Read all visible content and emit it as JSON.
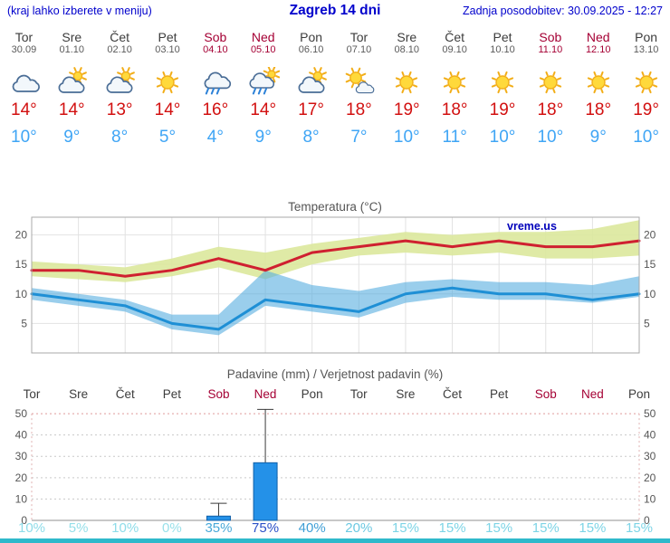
{
  "header": {
    "left_note": "(kraj lahko izberete v meniju)",
    "title": "Zagreb 14 dni",
    "updated": "Zadnja posodobitev: 30.09.2025 - 12:27"
  },
  "colors": {
    "link_blue": "#0000cc",
    "weekend_red": "#a50034",
    "tmax_red": "#d21010",
    "tmin_blue": "#3fa5f5",
    "footer_teal": "#2fb9cb"
  },
  "days": [
    {
      "name": "Tor",
      "date": "30.09",
      "weekend": false,
      "icon": "cloud-icon",
      "tmax": 14,
      "tmin": 10
    },
    {
      "name": "Sre",
      "date": "01.10",
      "weekend": false,
      "icon": "cloud-sun-icon",
      "tmax": 14,
      "tmin": 9
    },
    {
      "name": "Čet",
      "date": "02.10",
      "weekend": false,
      "icon": "cloud-sun-icon",
      "tmax": 13,
      "tmin": 8
    },
    {
      "name": "Pet",
      "date": "03.10",
      "weekend": false,
      "icon": "sun-icon",
      "tmax": 14,
      "tmin": 5
    },
    {
      "name": "Sob",
      "date": "04.10",
      "weekend": true,
      "icon": "cloud-rain-icon",
      "tmax": 16,
      "tmin": 4
    },
    {
      "name": "Ned",
      "date": "05.10",
      "weekend": true,
      "icon": "cloud-rain-sun-icon",
      "tmax": 14,
      "tmin": 9
    },
    {
      "name": "Pon",
      "date": "06.10",
      "weekend": false,
      "icon": "cloud-sun-icon",
      "tmax": 17,
      "tmin": 8
    },
    {
      "name": "Tor",
      "date": "07.10",
      "weekend": false,
      "icon": "sun-cloud-icon",
      "tmax": 18,
      "tmin": 7
    },
    {
      "name": "Sre",
      "date": "08.10",
      "weekend": false,
      "icon": "sun-icon",
      "tmax": 19,
      "tmin": 10
    },
    {
      "name": "Čet",
      "date": "09.10",
      "weekend": false,
      "icon": "sun-icon",
      "tmax": 18,
      "tmin": 11
    },
    {
      "name": "Pet",
      "date": "10.10",
      "weekend": false,
      "icon": "sun-icon",
      "tmax": 19,
      "tmin": 10
    },
    {
      "name": "Sob",
      "date": "11.10",
      "weekend": true,
      "icon": "sun-icon",
      "tmax": 18,
      "tmin": 10
    },
    {
      "name": "Ned",
      "date": "12.10",
      "weekend": true,
      "icon": "sun-icon",
      "tmax": 18,
      "tmin": 9
    },
    {
      "name": "Pon",
      "date": "13.10",
      "weekend": false,
      "icon": "sun-icon",
      "tmax": 19,
      "tmin": 10
    }
  ],
  "chart_data": [
    {
      "type": "line",
      "title": "Temperatura (°C)",
      "watermark": "vreme.us",
      "ylim": [
        0,
        23
      ],
      "yticks": [
        5,
        10,
        15,
        20
      ],
      "x_categories": [
        "Tor",
        "Sre",
        "Čet",
        "Pet",
        "Sob",
        "Ned",
        "Pon",
        "Tor",
        "Sre",
        "Čet",
        "Pet",
        "Sob",
        "Ned",
        "Pon"
      ],
      "series": [
        {
          "name": "max-temperature",
          "color": "#cf2030",
          "values": [
            14,
            14,
            13,
            14,
            16,
            14,
            17,
            18,
            19,
            18,
            19,
            18,
            18,
            19
          ]
        },
        {
          "name": "min-temperature",
          "color": "#1e8fd5",
          "values": [
            10,
            9,
            8,
            5,
            4,
            9,
            8,
            7,
            10,
            11,
            10,
            10,
            9,
            10
          ]
        }
      ],
      "bands": [
        {
          "name": "max-temperature-range",
          "color": "#dce89c",
          "opacity": 0.9,
          "upper": [
            15.5,
            15,
            14.5,
            16,
            18,
            17,
            18.5,
            19.5,
            20.5,
            20,
            20.5,
            20.5,
            21,
            22.5
          ],
          "lower": [
            13,
            12.5,
            12,
            13,
            14.5,
            12.5,
            15,
            16.5,
            17,
            16.5,
            17,
            16,
            16,
            16.5
          ]
        },
        {
          "name": "min-temperature-range",
          "color": "#57ade0",
          "opacity": 0.6,
          "upper": [
            11,
            10,
            9,
            6.5,
            6.5,
            14,
            11.5,
            10.5,
            12,
            12.5,
            12,
            12,
            11.5,
            13
          ],
          "lower": [
            9,
            8,
            7,
            4,
            3,
            8,
            7,
            6,
            8.5,
            9.5,
            9,
            9,
            8.5,
            9.5
          ]
        }
      ]
    },
    {
      "type": "bar",
      "title": "Padavine (mm) / Verjetnost padavin (%)",
      "categories": [
        "Tor",
        "Sre",
        "Čet",
        "Pet",
        "Sob",
        "Ned",
        "Pon",
        "Tor",
        "Sre",
        "Čet",
        "Pet",
        "Sob",
        "Ned",
        "Pon"
      ],
      "weekend": [
        false,
        false,
        false,
        false,
        true,
        true,
        false,
        false,
        false,
        false,
        false,
        true,
        true,
        false
      ],
      "values": [
        0,
        0,
        0,
        0,
        2,
        27,
        0,
        0,
        0,
        0,
        0,
        0,
        0,
        0
      ],
      "whisker_max": [
        0,
        0,
        0,
        0,
        8,
        52,
        0,
        0,
        0,
        0,
        0,
        0,
        0,
        0
      ],
      "unit": "mm",
      "ylim": [
        0,
        53
      ],
      "yticks": [
        0,
        10,
        20,
        30,
        40,
        50
      ],
      "bar_color": "#2491e8",
      "probabilities": [
        {
          "label": "10%",
          "color": "#8edce9"
        },
        {
          "label": "5%",
          "color": "#95dfe9"
        },
        {
          "label": "10%",
          "color": "#8edce9"
        },
        {
          "label": "0%",
          "color": "#9ae1ea"
        },
        {
          "label": "35%",
          "color": "#49a8d8"
        },
        {
          "label": "75%",
          "color": "#2b50c8"
        },
        {
          "label": "40%",
          "color": "#3f9fd6"
        },
        {
          "label": "20%",
          "color": "#6cc9e2"
        },
        {
          "label": "15%",
          "color": "#7dd4e6"
        },
        {
          "label": "15%",
          "color": "#7dd4e6"
        },
        {
          "label": "15%",
          "color": "#7dd4e6"
        },
        {
          "label": "15%",
          "color": "#7dd4e6"
        },
        {
          "label": "15%",
          "color": "#7dd4e6"
        },
        {
          "label": "15%",
          "color": "#7dd4e6"
        }
      ]
    }
  ]
}
